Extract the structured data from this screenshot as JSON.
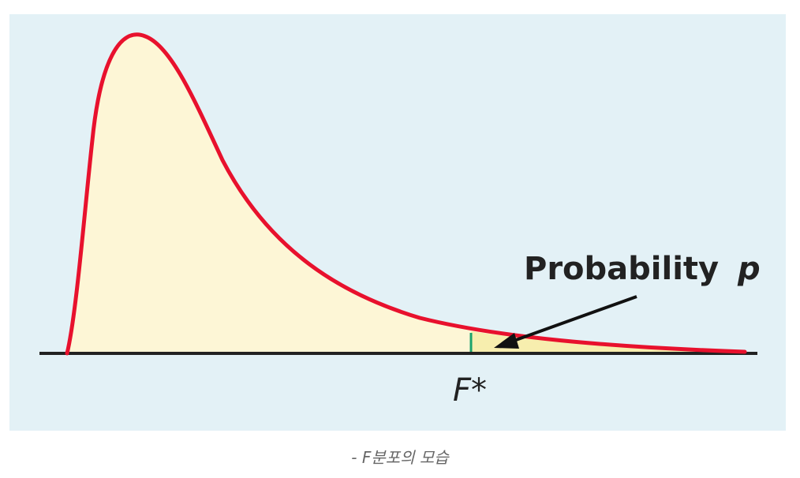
{
  "figure": {
    "probability_label": "Probability",
    "probability_symbol": "p",
    "critical_value_label": "F*",
    "colors": {
      "background": "#e3f1f6",
      "curve": "#e8112d",
      "fill": "#fdf6d6",
      "tail_fill": "#f7eeae",
      "axis": "#222222",
      "critical_line": "#1aa36b"
    }
  },
  "caption": "- F분포의 모습"
}
